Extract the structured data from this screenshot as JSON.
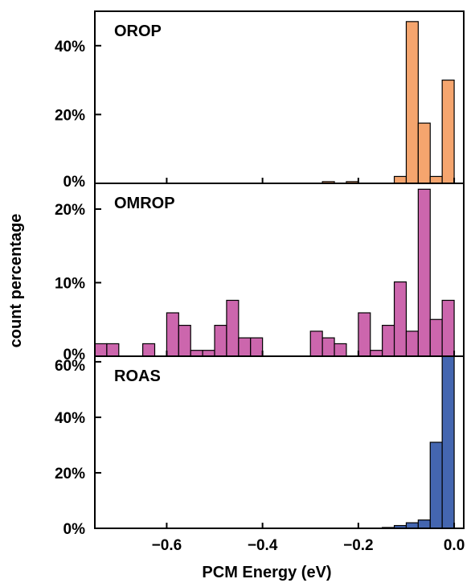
{
  "chart_data": {
    "type": "bar",
    "xlabel": "PCM Energy (eV)",
    "ylabel": "count percentage",
    "xlim": [
      -0.75,
      0.02
    ],
    "x_ticks": [
      -0.6,
      -0.4,
      -0.2,
      0.0
    ],
    "x_tick_labels": [
      "−0.6",
      "−0.4",
      "−0.2",
      "0.0"
    ],
    "bin_width": 0.025,
    "panels": [
      {
        "name": "OROP",
        "color": "#F5A56E",
        "ylim": [
          0,
          50
        ],
        "y_ticks": [
          0,
          20,
          40
        ],
        "y_tick_labels": [
          "0%",
          "20%",
          "40%"
        ],
        "bins": [
          {
            "x": -0.2625,
            "value": 0.5
          },
          {
            "x": -0.2125,
            "value": 0.5
          },
          {
            "x": -0.1125,
            "value": 2
          },
          {
            "x": -0.0875,
            "value": 47
          },
          {
            "x": -0.0625,
            "value": 17.5
          },
          {
            "x": -0.0375,
            "value": 2
          },
          {
            "x": -0.0125,
            "value": 30
          }
        ]
      },
      {
        "name": "OMROP",
        "color": "#CC66AD",
        "ylim": [
          0,
          23.5
        ],
        "y_ticks": [
          0,
          10,
          20
        ],
        "y_tick_labels": [
          "0%",
          "10%",
          "20%"
        ],
        "bins": [
          {
            "x": -0.7375,
            "value": 1.7
          },
          {
            "x": -0.7125,
            "value": 1.7
          },
          {
            "x": -0.6375,
            "value": 1.7
          },
          {
            "x": -0.5875,
            "value": 5.9
          },
          {
            "x": -0.5625,
            "value": 4.2
          },
          {
            "x": -0.5375,
            "value": 0.8
          },
          {
            "x": -0.5125,
            "value": 0.8
          },
          {
            "x": -0.4875,
            "value": 4.2
          },
          {
            "x": -0.4625,
            "value": 7.6
          },
          {
            "x": -0.4375,
            "value": 2.5
          },
          {
            "x": -0.4125,
            "value": 2.5
          },
          {
            "x": -0.2875,
            "value": 3.4
          },
          {
            "x": -0.2625,
            "value": 2.5
          },
          {
            "x": -0.2375,
            "value": 1.7
          },
          {
            "x": -0.1875,
            "value": 5.9
          },
          {
            "x": -0.1625,
            "value": 0.8
          },
          {
            "x": -0.1375,
            "value": 4.2
          },
          {
            "x": -0.1125,
            "value": 10.1
          },
          {
            "x": -0.0875,
            "value": 3.4
          },
          {
            "x": -0.0625,
            "value": 22.7
          },
          {
            "x": -0.0375,
            "value": 5.0
          },
          {
            "x": -0.0125,
            "value": 7.6
          }
        ]
      },
      {
        "name": "ROAS",
        "color": "#4466B0",
        "ylim": [
          0,
          62
        ],
        "y_ticks": [
          0,
          20,
          40,
          60
        ],
        "y_tick_labels": [
          "0%",
          "20%",
          "40%",
          "60%"
        ],
        "bins": [
          {
            "x": -0.1375,
            "value": 0.3
          },
          {
            "x": -0.1125,
            "value": 1
          },
          {
            "x": -0.0875,
            "value": 2
          },
          {
            "x": -0.0625,
            "value": 3
          },
          {
            "x": -0.0375,
            "value": 31
          },
          {
            "x": -0.0125,
            "value": 62
          }
        ]
      }
    ]
  }
}
